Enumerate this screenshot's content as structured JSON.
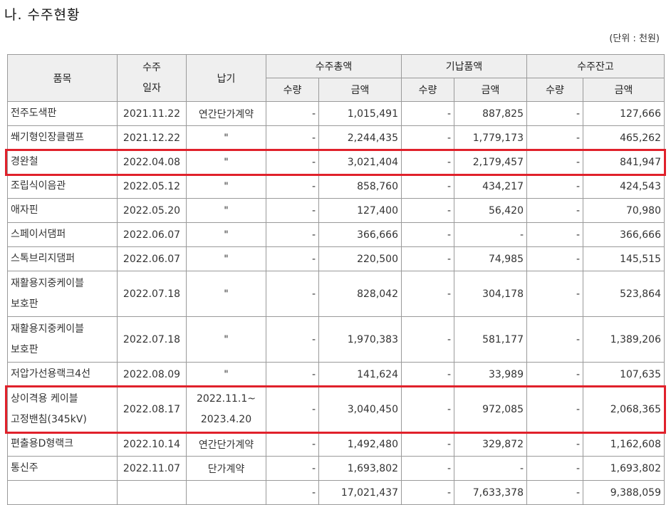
{
  "title": "나. 수주현황",
  "unit": "(단위 : 천원)",
  "headers": {
    "item": "품목",
    "order_date_1": "수주",
    "order_date_2": "일자",
    "delivery": "납기",
    "total_order": "수주총액",
    "delivered": "기납품액",
    "backlog": "수주잔고",
    "qty": "수량",
    "amount": "금액"
  },
  "rows": [
    {
      "item": "전주도색판",
      "date": "2021.11.22",
      "delivery": "연간단가계약",
      "q1": "-",
      "a1": "1,015,491",
      "q2": "-",
      "a2": "887,825",
      "q3": "-",
      "a3": "127,666"
    },
    {
      "item": "쐐기형인장클램프",
      "date": "2021.12.22",
      "delivery": "\"",
      "q1": "-",
      "a1": "2,244,435",
      "q2": "-",
      "a2": "1,779,173",
      "q3": "-",
      "a3": "465,262"
    },
    {
      "item": "경완철",
      "date": "2022.04.08",
      "delivery": "\"",
      "q1": "-",
      "a1": "3,021,404",
      "q2": "-",
      "a2": "2,179,457",
      "q3": "-",
      "a3": "841,947"
    },
    {
      "item": "조립식이음관",
      "date": "2022.05.12",
      "delivery": "\"",
      "q1": "-",
      "a1": "858,760",
      "q2": "-",
      "a2": "434,217",
      "q3": "-",
      "a3": "424,543"
    },
    {
      "item": "애자핀",
      "date": "2022.05.20",
      "delivery": "\"",
      "q1": "-",
      "a1": "127,400",
      "q2": "-",
      "a2": "56,420",
      "q3": "-",
      "a3": "70,980"
    },
    {
      "item": "스페이서댐퍼",
      "date": "2022.06.07",
      "delivery": "\"",
      "q1": "-",
      "a1": "366,666",
      "q2": "-",
      "a2": "-",
      "q3": "-",
      "a3": "366,666"
    },
    {
      "item": "스톡브리지댐퍼",
      "date": "2022.06.07",
      "delivery": "\"",
      "q1": "-",
      "a1": "220,500",
      "q2": "-",
      "a2": "74,985",
      "q3": "-",
      "a3": "145,515"
    },
    {
      "item": "재활용지중케이블",
      "item2": "보호판",
      "date": "2022.07.18",
      "delivery": "\"",
      "q1": "-",
      "a1": "828,042",
      "q2": "-",
      "a2": "304,178",
      "q3": "-",
      "a3": "523,864"
    },
    {
      "item": "재활용지중케이블",
      "item2": "보호판",
      "date": "2022.07.18",
      "delivery": "\"",
      "q1": "-",
      "a1": "1,970,383",
      "q2": "-",
      "a2": "581,177",
      "q3": "-",
      "a3": "1,389,206"
    },
    {
      "item": "저압가선용랙크4선",
      "date": "2022.08.09",
      "delivery": "\"",
      "q1": "-",
      "a1": "141,624",
      "q2": "-",
      "a2": "33,989",
      "q3": "-",
      "a3": "107,635"
    },
    {
      "item": "상이격용 케이블",
      "item2": "고정밴침(345kV)",
      "date": "2022.08.17",
      "delivery": "2022.11.1~",
      "delivery2": "2023.4.20",
      "q1": "-",
      "a1": "3,040,450",
      "q2": "-",
      "a2": "972,085",
      "q3": "-",
      "a3": "2,068,365"
    },
    {
      "item": "편출용D형랙크",
      "date": "2022.10.14",
      "delivery": "연간단가계약",
      "q1": "-",
      "a1": "1,492,480",
      "q2": "-",
      "a2": "329,872",
      "q3": "-",
      "a3": "1,162,608"
    },
    {
      "item": "통신주",
      "date": "2022.11.07",
      "delivery": "단가계약",
      "q1": "-",
      "a1": "1,693,802",
      "q2": "-",
      "a2": "-",
      "q3": "-",
      "a3": "1,693,802"
    }
  ],
  "total": {
    "q1": "-",
    "a1": "17,021,437",
    "q2": "-",
    "a2": "7,633,378",
    "q3": "-",
    "a3": "9,388,059"
  },
  "highlight_color": "#e0212b"
}
